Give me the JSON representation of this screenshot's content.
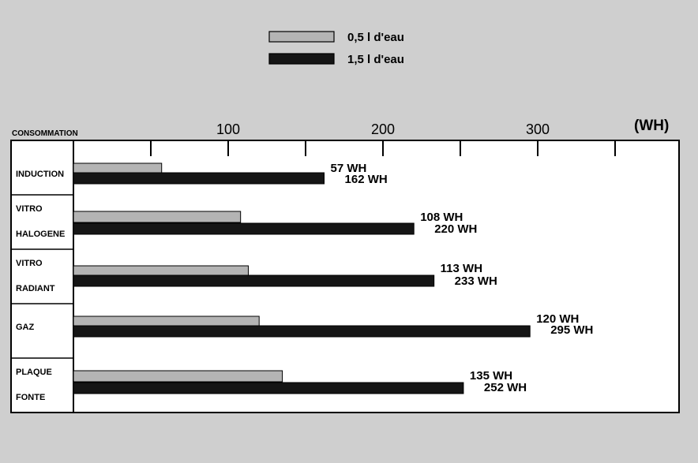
{
  "chart_data": {
    "type": "bar",
    "orientation": "horizontal",
    "axis_title": "CONSOMMATION",
    "unit": "(WH)",
    "xlim": [
      0,
      385
    ],
    "xticks": [
      100,
      200,
      300
    ],
    "legend_position": "top",
    "categories": [
      [
        "INDUCTION"
      ],
      [
        "VITRO",
        "HALOGENE"
      ],
      [
        "VITRO",
        "RADIANT"
      ],
      [
        "GAZ"
      ],
      [
        "PLAQUE",
        "FONTE"
      ]
    ],
    "series": [
      {
        "name": "0,5 l d'eau",
        "color": "#b4b4b4",
        "values": [
          57,
          108,
          113,
          120,
          135
        ],
        "labels": [
          "57 WH",
          "108 WH",
          "113 WH",
          "120 WH",
          "135 WH"
        ]
      },
      {
        "name": "1,5 l d'eau",
        "color": "#151515",
        "values": [
          162,
          220,
          233,
          295,
          252
        ],
        "labels": [
          "162 WH",
          "220 WH",
          "233 WH",
          "295 WH",
          "252 WH"
        ]
      }
    ]
  }
}
